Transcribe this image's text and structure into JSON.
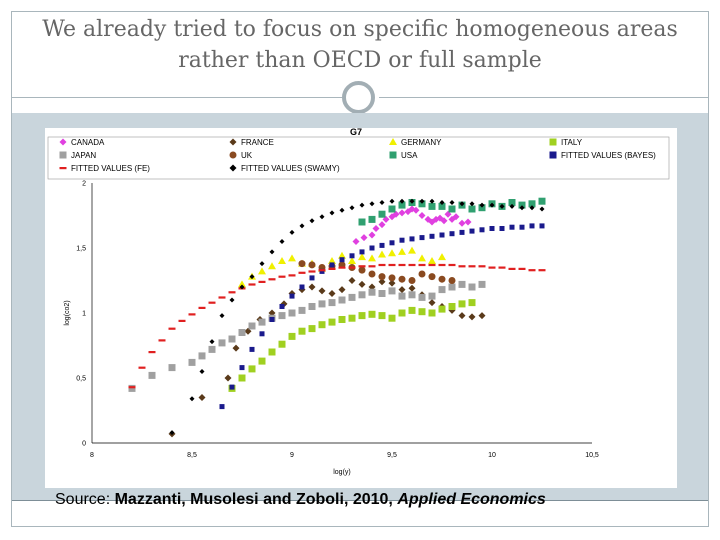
{
  "slide": {
    "title_line1": "We already tried to focus on specific homogeneous areas",
    "title_line2": "rather than OECD or full sample",
    "source_prefix": "Source:",
    "source_authors": "Mazzanti, Musolesi and Zoboli, 2010,",
    "source_journal": "Applied Economics"
  },
  "chart_data": {
    "type": "scatter",
    "title": "G7",
    "xlabel": "log(y)",
    "ylabel": "log(co2)",
    "xlim": [
      8,
      10.5
    ],
    "ylim": [
      0,
      2
    ],
    "xticks": [
      "8",
      "8,5",
      "9",
      "9,5",
      "10",
      "10,5"
    ],
    "yticks": [
      "0",
      "0,5",
      "1",
      "1,5",
      "2"
    ],
    "legend": [
      "CANADA",
      "FRANCE",
      "GERMANY",
      "ITALY",
      "JAPAN",
      "UK",
      "USA",
      "FITTED VALUES (BAYES)",
      "FITTED VALUES (FE)",
      "FITTED VALUES (SWAMY)"
    ],
    "series": [
      {
        "name": "CANADA",
        "color": "#e040e0",
        "marker": "diamond",
        "x": [
          9.32,
          9.36,
          9.4,
          9.42,
          9.45,
          9.47,
          9.5,
          9.52,
          9.55,
          9.58,
          9.6,
          9.62,
          9.65,
          9.68,
          9.7,
          9.72,
          9.74,
          9.76,
          9.78,
          9.8,
          9.82,
          9.85,
          9.88
        ],
        "y": [
          1.55,
          1.58,
          1.6,
          1.65,
          1.68,
          1.72,
          1.74,
          1.76,
          1.77,
          1.78,
          1.8,
          1.79,
          1.75,
          1.72,
          1.7,
          1.72,
          1.73,
          1.71,
          1.76,
          1.72,
          1.74,
          1.69,
          1.7
        ]
      },
      {
        "name": "FRANCE",
        "color": "#5a3a1a",
        "marker": "diamond",
        "x": [
          8.4,
          8.55,
          8.68,
          8.72,
          8.78,
          8.84,
          8.9,
          8.96,
          9.0,
          9.05,
          9.1,
          9.15,
          9.2,
          9.25,
          9.3,
          9.35,
          9.4,
          9.45,
          9.5,
          9.55,
          9.6,
          9.65,
          9.7,
          9.75,
          9.8,
          9.85,
          9.9,
          9.95
        ],
        "y": [
          0.07,
          0.35,
          0.5,
          0.73,
          0.86,
          0.95,
          1.0,
          1.07,
          1.15,
          1.18,
          1.2,
          1.17,
          1.15,
          1.18,
          1.25,
          1.22,
          1.2,
          1.24,
          1.23,
          1.18,
          1.19,
          1.14,
          1.08,
          1.05,
          1.02,
          0.98,
          0.97,
          0.98
        ]
      },
      {
        "name": "GERMANY",
        "color": "#f0f000",
        "marker": "triangle",
        "x": [
          8.75,
          8.8,
          8.85,
          8.9,
          8.95,
          9.0,
          9.05,
          9.1,
          9.15,
          9.2,
          9.25,
          9.3,
          9.35,
          9.4,
          9.45,
          9.5,
          9.55,
          9.6,
          9.65,
          9.7,
          9.75
        ],
        "y": [
          1.22,
          1.28,
          1.32,
          1.36,
          1.4,
          1.42,
          1.38,
          1.38,
          1.34,
          1.4,
          1.44,
          1.4,
          1.43,
          1.42,
          1.45,
          1.46,
          1.47,
          1.48,
          1.42,
          1.4,
          1.43
        ]
      },
      {
        "name": "ITALY",
        "color": "#a0d020",
        "marker": "square",
        "x": [
          8.7,
          8.75,
          8.8,
          8.85,
          8.9,
          8.95,
          9.0,
          9.05,
          9.1,
          9.15,
          9.2,
          9.25,
          9.3,
          9.35,
          9.4,
          9.45,
          9.5,
          9.55,
          9.6,
          9.65,
          9.7,
          9.75,
          9.8,
          9.85,
          9.9
        ],
        "y": [
          0.42,
          0.5,
          0.57,
          0.63,
          0.7,
          0.76,
          0.82,
          0.86,
          0.88,
          0.91,
          0.93,
          0.95,
          0.96,
          0.98,
          0.99,
          0.98,
          0.96,
          1.0,
          1.02,
          1.01,
          1.0,
          1.03,
          1.05,
          1.07,
          1.08
        ]
      },
      {
        "name": "JAPAN",
        "color": "#a0a0a0",
        "marker": "square",
        "x": [
          8.2,
          8.3,
          8.4,
          8.5,
          8.55,
          8.6,
          8.65,
          8.7,
          8.75,
          8.8,
          8.85,
          8.9,
          8.95,
          9.0,
          9.05,
          9.1,
          9.15,
          9.2,
          9.25,
          9.3,
          9.35,
          9.4,
          9.45,
          9.5,
          9.55,
          9.6,
          9.65,
          9.7,
          9.75,
          9.8,
          9.85,
          9.9,
          9.95
        ],
        "y": [
          0.42,
          0.52,
          0.58,
          0.62,
          0.67,
          0.72,
          0.77,
          0.8,
          0.85,
          0.9,
          0.93,
          0.96,
          0.98,
          1.0,
          1.02,
          1.05,
          1.07,
          1.08,
          1.1,
          1.12,
          1.14,
          1.16,
          1.15,
          1.17,
          1.13,
          1.14,
          1.12,
          1.13,
          1.18,
          1.2,
          1.22,
          1.2,
          1.22
        ]
      },
      {
        "name": "UK",
        "color": "#8a4a20",
        "marker": "circle",
        "x": [
          9.05,
          9.1,
          9.15,
          9.2,
          9.25,
          9.3,
          9.35,
          9.4,
          9.45,
          9.5,
          9.55,
          9.6,
          9.65,
          9.7,
          9.75,
          9.8
        ],
        "y": [
          1.38,
          1.37,
          1.35,
          1.36,
          1.37,
          1.35,
          1.33,
          1.3,
          1.28,
          1.27,
          1.26,
          1.25,
          1.3,
          1.28,
          1.26,
          1.25
        ]
      },
      {
        "name": "USA",
        "color": "#30a070",
        "marker": "square",
        "x": [
          9.35,
          9.4,
          9.45,
          9.5,
          9.55,
          9.6,
          9.65,
          9.7,
          9.75,
          9.8,
          9.85,
          9.9,
          9.95,
          10.0,
          10.05,
          10.1,
          10.15,
          10.2,
          10.25
        ],
        "y": [
          1.7,
          1.72,
          1.76,
          1.8,
          1.83,
          1.85,
          1.84,
          1.82,
          1.82,
          1.8,
          1.83,
          1.8,
          1.81,
          1.84,
          1.82,
          1.85,
          1.83,
          1.84,
          1.86
        ]
      },
      {
        "name": "FITTED VALUES (BAYES)",
        "color": "#1a1a8c",
        "marker": "smallsquare",
        "x": [
          8.65,
          8.7,
          8.75,
          8.8,
          8.85,
          8.9,
          8.95,
          9.0,
          9.05,
          9.1,
          9.15,
          9.2,
          9.25,
          9.3,
          9.35,
          9.4,
          9.45,
          9.5,
          9.55,
          9.6,
          9.65,
          9.7,
          9.75,
          9.8,
          9.85,
          9.9,
          9.95,
          10.0,
          10.05,
          10.1,
          10.15,
          10.2,
          10.25
        ],
        "y": [
          0.28,
          0.43,
          0.58,
          0.72,
          0.84,
          0.95,
          1.05,
          1.13,
          1.2,
          1.27,
          1.32,
          1.37,
          1.41,
          1.44,
          1.47,
          1.5,
          1.52,
          1.54,
          1.56,
          1.57,
          1.58,
          1.59,
          1.6,
          1.61,
          1.62,
          1.63,
          1.64,
          1.65,
          1.65,
          1.66,
          1.66,
          1.67,
          1.67
        ]
      },
      {
        "name": "FITTED VALUES (FE)",
        "color": "#e02020",
        "marker": "dash",
        "x": [
          8.2,
          8.25,
          8.3,
          8.35,
          8.4,
          8.45,
          8.5,
          8.55,
          8.6,
          8.65,
          8.7,
          8.75,
          8.8,
          8.85,
          8.9,
          8.95,
          9.0,
          9.05,
          9.1,
          9.15,
          9.2,
          9.25,
          9.3,
          9.35,
          9.4,
          9.45,
          9.5,
          9.55,
          9.6,
          9.65,
          9.7,
          9.75,
          9.8,
          9.85,
          9.9,
          9.95,
          10.0,
          10.05,
          10.1,
          10.15,
          10.2,
          10.25
        ],
        "y": [
          0.43,
          0.58,
          0.7,
          0.79,
          0.88,
          0.94,
          0.99,
          1.04,
          1.08,
          1.12,
          1.16,
          1.19,
          1.22,
          1.24,
          1.26,
          1.28,
          1.29,
          1.31,
          1.32,
          1.33,
          1.34,
          1.35,
          1.35,
          1.36,
          1.36,
          1.37,
          1.37,
          1.37,
          1.37,
          1.37,
          1.37,
          1.37,
          1.37,
          1.36,
          1.36,
          1.36,
          1.35,
          1.35,
          1.34,
          1.34,
          1.33,
          1.33
        ]
      },
      {
        "name": "FITTED VALUES (SWAMY)",
        "color": "#000000",
        "marker": "smalldiamond",
        "x": [
          8.4,
          8.5,
          8.55,
          8.6,
          8.65,
          8.7,
          8.75,
          8.8,
          8.85,
          8.9,
          8.95,
          9.0,
          9.05,
          9.1,
          9.15,
          9.2,
          9.25,
          9.3,
          9.35,
          9.4,
          9.45,
          9.5,
          9.55,
          9.6,
          9.65,
          9.7,
          9.75,
          9.8,
          9.85,
          9.9,
          9.95,
          10.0,
          10.05,
          10.1,
          10.15,
          10.2,
          10.25
        ],
        "y": [
          0.08,
          0.34,
          0.55,
          0.78,
          0.98,
          1.1,
          1.2,
          1.28,
          1.38,
          1.47,
          1.55,
          1.62,
          1.67,
          1.71,
          1.74,
          1.77,
          1.79,
          1.81,
          1.83,
          1.84,
          1.85,
          1.86,
          1.86,
          1.86,
          1.86,
          1.86,
          1.85,
          1.85,
          1.84,
          1.84,
          1.83,
          1.83,
          1.82,
          1.82,
          1.81,
          1.81,
          1.8
        ]
      }
    ]
  }
}
